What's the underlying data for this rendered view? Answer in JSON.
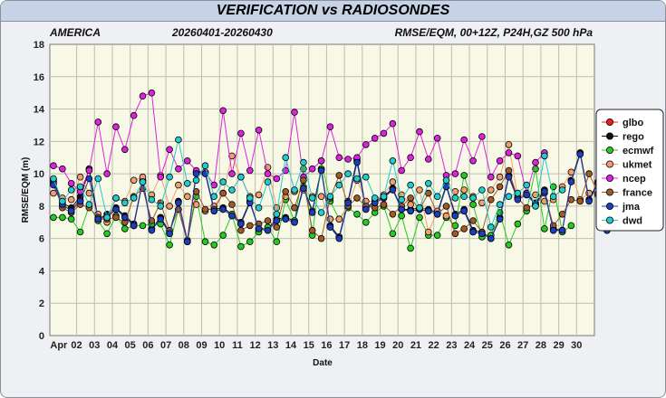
{
  "chart_data": {
    "type": "line",
    "title": "VERIFICATION vs RADIOSONDES",
    "region": "AMERICA",
    "period": "20260401-20260430",
    "parameters": "RMSE/EQM, 00+12Z, P24H,GZ 500 hPa",
    "xlabel": "Date",
    "ylabel": "RMSE/EQM (m)",
    "ylim": [
      0,
      18
    ],
    "yticks": [
      "0",
      "2",
      "4",
      "6",
      "8",
      "10",
      "12",
      "14",
      "16",
      "18"
    ],
    "x_tick_labels": [
      "Apr",
      "02",
      "03",
      "04",
      "05",
      "06",
      "07",
      "08",
      "09",
      "10",
      "11",
      "12",
      "13",
      "14",
      "15",
      "16",
      "17",
      "18",
      "19",
      "20",
      "21",
      "22",
      "23",
      "24",
      "25",
      "26",
      "27",
      "28",
      "29",
      "30"
    ],
    "grid": true,
    "legend_position": "right",
    "x_points_per_day": 2,
    "series": [
      {
        "name": "glbo",
        "color": "#e8201e",
        "values": [
          9.5,
          8.0,
          7.8,
          8.4,
          10.3,
          7.1,
          7.3,
          7.8,
          7.4,
          6.8,
          9.6,
          6.6,
          7.3,
          6.3,
          8.3,
          5.9,
          10.1,
          10.1,
          7.7,
          7.8,
          7.4,
          6.9,
          8.3,
          6.6,
          6.5,
          7.1,
          7.2,
          7.0,
          9.2,
          7.7,
          10.3,
          6.7,
          6.1,
          8.3,
          10.8,
          7.8,
          8.2,
          8.5,
          9.1,
          7.8,
          7.7,
          7.8,
          7.7,
          7.5,
          9.3,
          7.4,
          7.7,
          6.4,
          6.3,
          6.0,
          7.2,
          9.9,
          8.5,
          8.8,
          8.1,
          9.0,
          6.5,
          6.5,
          9.6,
          11.3,
          8.4,
          9.5,
          6.5,
          7.0
        ]
      },
      {
        "name": "rego",
        "color": "#111111",
        "values": [
          9.6,
          8.2,
          7.9,
          8.6,
          10.3,
          7.2,
          7.5,
          7.9,
          7.4,
          6.9,
          9.6,
          6.6,
          7.3,
          6.4,
          8.3,
          5.8,
          10.1,
          10.1,
          7.8,
          7.9,
          7.5,
          7.0,
          8.3,
          6.6,
          6.6,
          7.2,
          7.3,
          7.1,
          9.2,
          7.7,
          10.3,
          6.8,
          6.1,
          8.3,
          10.9,
          7.9,
          8.3,
          8.6,
          9.1,
          7.8,
          7.8,
          7.9,
          7.8,
          7.6,
          9.3,
          7.5,
          7.8,
          6.5,
          6.4,
          6.0,
          7.3,
          9.9,
          8.5,
          8.8,
          8.2,
          9.0,
          6.6,
          6.5,
          9.6,
          11.3,
          8.4,
          9.5,
          6.6,
          7.1
        ]
      },
      {
        "name": "ecmwf",
        "color": "#22cc22",
        "values": [
          7.3,
          7.3,
          7.2,
          6.4,
          8.0,
          7.1,
          6.3,
          7.4,
          6.6,
          6.8,
          6.8,
          6.9,
          6.9,
          5.6,
          7.8,
          5.8,
          8.6,
          5.8,
          5.6,
          6.2,
          7.5,
          5.5,
          5.8,
          6.4,
          6.7,
          5.8,
          8.4,
          7.1,
          10.3,
          6.2,
          10.8,
          8.3,
          7.2,
          7.9,
          7.5,
          7.0,
          7.6,
          8.0,
          6.3,
          7.4,
          5.4,
          7.3,
          6.2,
          6.2,
          7.3,
          6.8,
          9.9,
          8.1,
          6.1,
          6.2,
          7.6,
          5.6,
          6.9,
          7.7,
          10.3,
          6.6,
          9.2,
          6.4,
          6.8
        ]
      },
      {
        "name": "ukmet",
        "color": "#f0a070",
        "values": [
          8.8,
          8.5,
          8.4,
          9.8,
          8.8,
          7.5,
          7.0,
          8.5,
          8.3,
          9.6,
          9.8,
          8.7,
          9.9,
          8.0,
          9.3,
          8.6,
          8.1,
          7.7,
          8.0,
          8.8,
          11.1,
          9.8,
          8.6,
          8.7,
          10.4,
          7.9,
          8.6,
          8.9,
          9.0,
          8.6,
          8.6,
          7.2,
          7.2,
          8.0,
          9.6,
          8.3,
          8.3,
          8.7,
          9.5,
          8.7,
          8.1,
          9.0,
          6.4,
          7.7,
          7.4,
          8.9,
          9.0,
          8.6,
          8.2,
          9.0,
          9.8,
          11.8,
          8.6,
          8.7,
          8.7,
          8.3,
          8.4,
          9.2,
          10.1,
          8.4,
          8.8,
          8.7,
          9.2
        ]
      },
      {
        "name": "ncep",
        "color": "#dd22dd",
        "values": [
          10.5,
          10.3,
          9.4,
          8.9,
          10.2,
          13.2,
          10.0,
          12.9,
          11.5,
          13.6,
          14.8,
          15.0,
          9.8,
          11.5,
          10.3,
          10.8,
          10.2,
          10.1,
          9.3,
          13.9,
          10.0,
          12.5,
          10.2,
          12.7,
          10.0,
          9.7,
          10.2,
          13.8,
          9.8,
          10.3,
          10.8,
          12.9,
          11.0,
          10.9,
          11.0,
          11.8,
          12.2,
          12.5,
          13.1,
          10.2,
          11.0,
          12.6,
          10.9,
          12.2,
          9.9,
          10.0,
          12.1,
          10.8,
          12.3,
          9.8,
          10.8,
          11.3,
          11.1,
          8.8,
          10.7,
          11.3
        ]
      },
      {
        "name": "france",
        "color": "#a05a2a",
        "values": [
          9.4,
          7.9,
          7.6,
          8.1,
          7.9,
          7.3,
          7.2,
          7.3,
          7.0,
          8.6,
          9.1,
          7.1,
          8.2,
          6.5,
          7.8,
          5.8,
          8.9,
          7.8,
          7.8,
          8.8,
          8.1,
          6.5,
          6.8,
          6.9,
          7.1,
          6.7,
          8.9,
          7.9,
          9.6,
          6.5,
          6.0,
          8.5,
          9.9,
          8.0,
          8.5,
          8.0,
          7.9,
          8.1,
          7.5,
          8.0,
          8.5,
          7.8,
          8.8,
          7.5,
          8.0,
          6.3,
          6.6,
          7.1,
          6.4,
          8.4,
          9.2,
          10.2,
          8.5,
          7.9,
          8.1,
          8.8,
          6.8,
          7.5,
          8.4,
          8.3,
          10.0,
          8.8,
          7.4,
          6.8
        ]
      },
      {
        "name": "jma",
        "color": "#1a3fbf",
        "values": [
          9.3,
          8.1,
          7.7,
          8.3,
          9.7,
          7.2,
          7.4,
          7.8,
          7.3,
          6.8,
          9.5,
          6.5,
          7.2,
          6.3,
          8.2,
          5.8,
          10.0,
          10.0,
          7.7,
          7.8,
          7.4,
          6.9,
          8.2,
          6.6,
          6.5,
          7.1,
          7.2,
          7.0,
          9.1,
          7.6,
          10.2,
          6.7,
          6.0,
          8.2,
          10.7,
          7.8,
          8.2,
          8.5,
          9.0,
          7.8,
          7.7,
          7.8,
          7.7,
          7.5,
          9.2,
          7.4,
          7.7,
          6.4,
          6.3,
          6.0,
          7.2,
          9.8,
          8.4,
          8.7,
          8.1,
          8.9,
          6.5,
          6.5,
          9.5,
          11.2,
          8.3,
          9.4,
          6.5,
          7.0
        ]
      },
      {
        "name": "dwd",
        "color": "#22cccc",
        "values": [
          9.7,
          8.3,
          9.0,
          9.2,
          8.1,
          9.7,
          7.3,
          8.5,
          8.2,
          8.5,
          9.5,
          8.4,
          8.0,
          9.8,
          12.1,
          9.4,
          9.6,
          10.5,
          8.6,
          9.5,
          9.0,
          9.8,
          8.5,
          7.9,
          9.5,
          7.5,
          11.0,
          9.0,
          10.7,
          8.5,
          7.6,
          8.6,
          9.3,
          10.0,
          9.7,
          9.8,
          8.5,
          8.6,
          10.8,
          8.4,
          9.3,
          7.9,
          9.4,
          8.6,
          9.6,
          8.5,
          8.6,
          8.5,
          9.0,
          6.7,
          8.1,
          8.6,
          8.8,
          9.3,
          8.0,
          11.1,
          8.6,
          9.0
        ]
      }
    ]
  },
  "legend_items": [
    "glbo",
    "rego",
    "ecmwf",
    "ukmet",
    "ncep",
    "france",
    "jma",
    "dwd"
  ],
  "colors": {
    "background": "#eef0f3",
    "plot_area": "#f8f8e6",
    "titlebar": "#c7d3e6",
    "april_label": "#1a3fbf"
  }
}
